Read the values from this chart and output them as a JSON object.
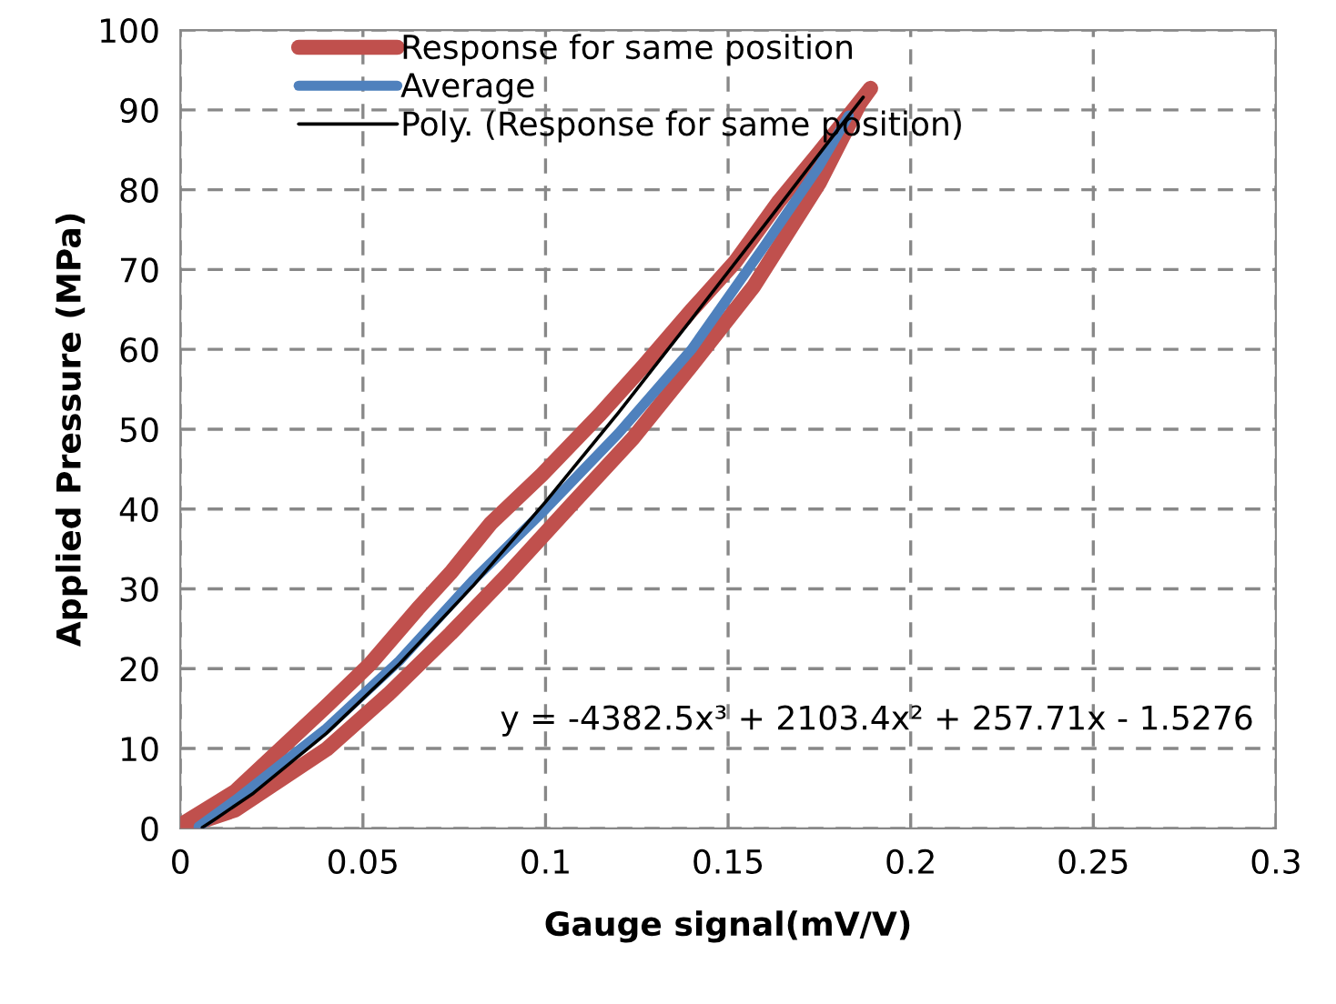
{
  "chart_data": {
    "type": "line",
    "xlabel": "Gauge signal(mV/V)",
    "ylabel": "Applied Pressure (MPa)",
    "xlim": [
      0,
      0.3
    ],
    "xticks": [
      0,
      0.05,
      0.1,
      0.15,
      0.2,
      0.25,
      0.3
    ],
    "ylim": [
      0,
      100
    ],
    "yticks": [
      0,
      10,
      20,
      30,
      40,
      50,
      60,
      70,
      80,
      90,
      100
    ],
    "grid": true,
    "legend": "top left",
    "marker": "none",
    "line_style": "solid",
    "annotations": [
      "y = -4382.5x³ + 2103.4x² + 257.71x - 1.5276"
    ],
    "series": [
      {
        "name": "Response for same position",
        "color": "#c0504d",
        "x": [
          0.0,
          0.015,
          0.04,
          0.057,
          0.074,
          0.09,
          0.107,
          0.124,
          0.14,
          0.157,
          0.175,
          0.186,
          0.189,
          0.175,
          0.164,
          0.152,
          0.14,
          0.127,
          0.115,
          0.099,
          0.085,
          0.074,
          0.065,
          0.052,
          0.04,
          0.015,
          0.0
        ],
        "values": [
          0.0,
          2.3,
          9.9,
          16.8,
          24.4,
          32.0,
          40.5,
          48.9,
          58.0,
          67.9,
          80.9,
          90.8,
          92.7,
          84.7,
          78.6,
          71.0,
          64.9,
          58.0,
          51.9,
          44.3,
          38.2,
          32.0,
          27.5,
          20.6,
          15.3,
          4.6,
          0.4
        ]
      },
      {
        "name": "Average",
        "color": "#4f81bd",
        "x": [
          0.005,
          0.015,
          0.04,
          0.06,
          0.08,
          0.1,
          0.12,
          0.14,
          0.16,
          0.175,
          0.183
        ],
        "values": [
          0.2,
          3.5,
          12.5,
          21.0,
          31.0,
          40.0,
          49.5,
          60.0,
          73.0,
          83.0,
          89.3
        ]
      },
      {
        "name": "Poly. (Response for same position)",
        "color": "#000000",
        "x": [
          0.006,
          0.01,
          0.02,
          0.04,
          0.06,
          0.08,
          0.1,
          0.12,
          0.14,
          0.16,
          0.18,
          0.187
        ],
        "values": [
          0.1,
          1.3,
          4.4,
          11.9,
          20.6,
          30.3,
          40.9,
          52.1,
          63.8,
          75.6,
          87.5,
          91.6
        ]
      }
    ]
  }
}
